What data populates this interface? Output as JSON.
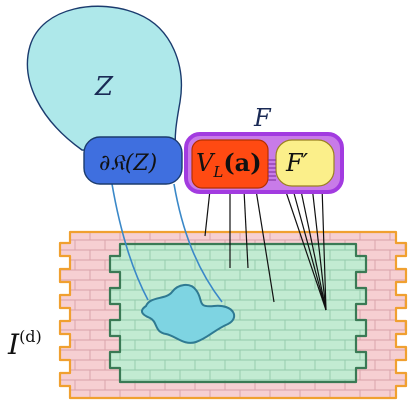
{
  "labels": {
    "Z": "Z",
    "boundary": "∂𝔎(Z)",
    "F": "F",
    "VL": "V",
    "VL_sub": "L",
    "VL_arg": "(a)",
    "Fprime": "F′",
    "I": "I",
    "I_sup": "(d)"
  },
  "colors": {
    "z_fill": "#aee8ea",
    "boundary_fill": "#3f6fdf",
    "f_outline": "#a23be0",
    "vl_fill": "#ff4a12",
    "fprime_fill": "#fbef8a",
    "outer_wall": "#f6cfd2",
    "outer_wall_border": "#f0a030",
    "inner_wall": "#c2ebd2",
    "inner_wall_border": "#3a7a55",
    "blob_fill": "#7ed4e2",
    "blob_border": "#2f7a92",
    "line": "#111111",
    "tube": "#3a88c8"
  }
}
